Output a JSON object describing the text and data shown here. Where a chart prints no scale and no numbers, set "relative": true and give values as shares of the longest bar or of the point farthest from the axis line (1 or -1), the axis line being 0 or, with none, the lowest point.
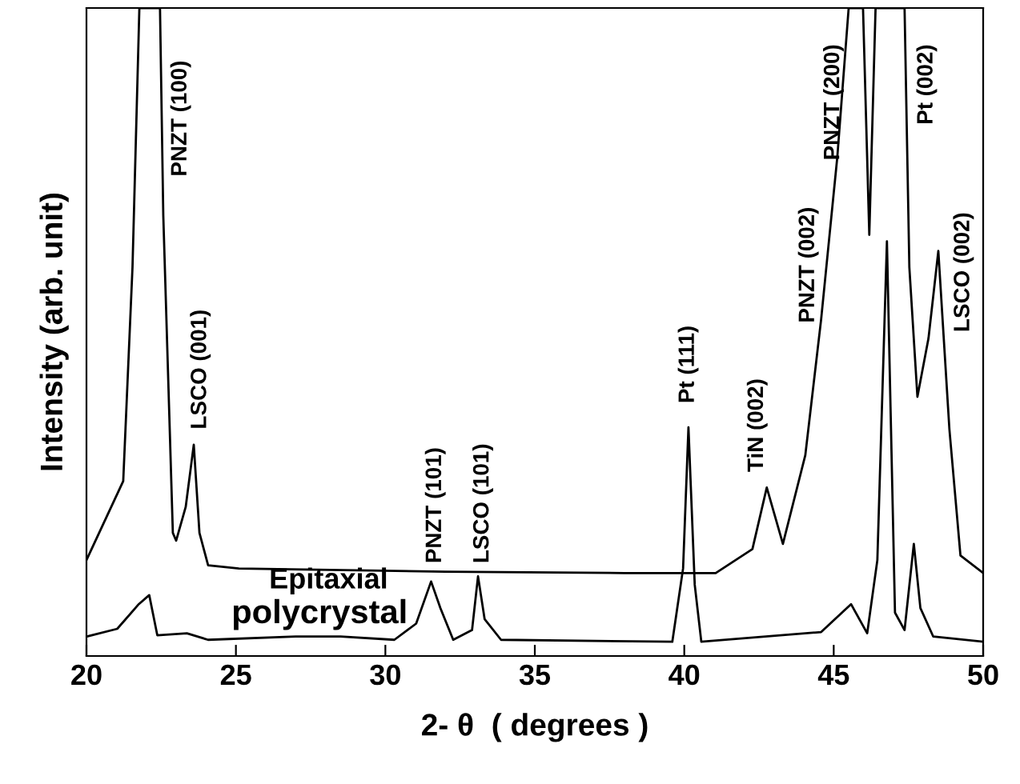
{
  "chart_data": {
    "type": "line",
    "relative": true,
    "xlabel": "2- θ  ( degrees )",
    "ylabel": "Intensity (arb. unit)",
    "xlim": [
      20,
      50
    ],
    "xticks": [
      20,
      25,
      30,
      35,
      40,
      45,
      50
    ],
    "grid": false,
    "legend": false,
    "marker": "none",
    "line_style": "solid",
    "tick_labels": "x",
    "series": [
      {
        "name": "Epitaxial",
        "color": "#000000",
        "x": [
          20.0,
          21.23,
          21.54,
          21.77,
          22.46,
          22.57,
          22.89,
          23.0,
          23.32,
          23.59,
          23.78,
          24.07,
          25.1,
          32.0,
          38.0,
          41.05,
          42.28,
          42.76,
          43.3,
          44.05,
          44.58,
          45.12,
          45.5,
          45.98,
          46.19,
          46.4,
          47.37,
          47.53,
          47.8,
          48.17,
          48.5,
          48.87,
          49.24,
          50.0
        ],
        "values": [
          0.148,
          0.27,
          0.6,
          1.0,
          1.0,
          0.68,
          0.19,
          0.178,
          0.23,
          0.326,
          0.19,
          0.14,
          0.135,
          0.13,
          0.128,
          0.128,
          0.165,
          0.26,
          0.173,
          0.31,
          0.52,
          0.77,
          1.0,
          1.0,
          0.65,
          1.0,
          1.0,
          0.6,
          0.4,
          0.49,
          0.625,
          0.35,
          0.155,
          0.128
        ]
      },
      {
        "name": "polycrystal",
        "color": "#000000",
        "x": [
          20.0,
          21.03,
          21.75,
          22.1,
          22.37,
          23.36,
          24.07,
          27.0,
          28.5,
          30.3,
          31.03,
          31.53,
          31.84,
          32.27,
          32.9,
          33.1,
          33.32,
          33.87,
          39.6,
          39.96,
          40.14,
          40.35,
          40.57,
          44.58,
          45.58,
          46.12,
          46.46,
          46.78,
          47.05,
          47.37,
          47.68,
          47.9,
          48.33,
          50.0
        ],
        "values": [
          0.03,
          0.042,
          0.08,
          0.094,
          0.032,
          0.035,
          0.025,
          0.03,
          0.03,
          0.025,
          0.05,
          0.115,
          0.074,
          0.025,
          0.04,
          0.123,
          0.057,
          0.025,
          0.022,
          0.135,
          0.353,
          0.11,
          0.022,
          0.037,
          0.08,
          0.035,
          0.148,
          0.64,
          0.067,
          0.04,
          0.173,
          0.074,
          0.03,
          0.022
        ]
      }
    ],
    "annotations": [
      "PNZT (100)",
      "LSCO (001)",
      "PNZT (101)",
      "LSCO (101)",
      "Pt (111)",
      "TiN (002)",
      "PNZT (002)",
      "PNZT (200)",
      "Pt (002)",
      "LSCO (002)"
    ]
  }
}
